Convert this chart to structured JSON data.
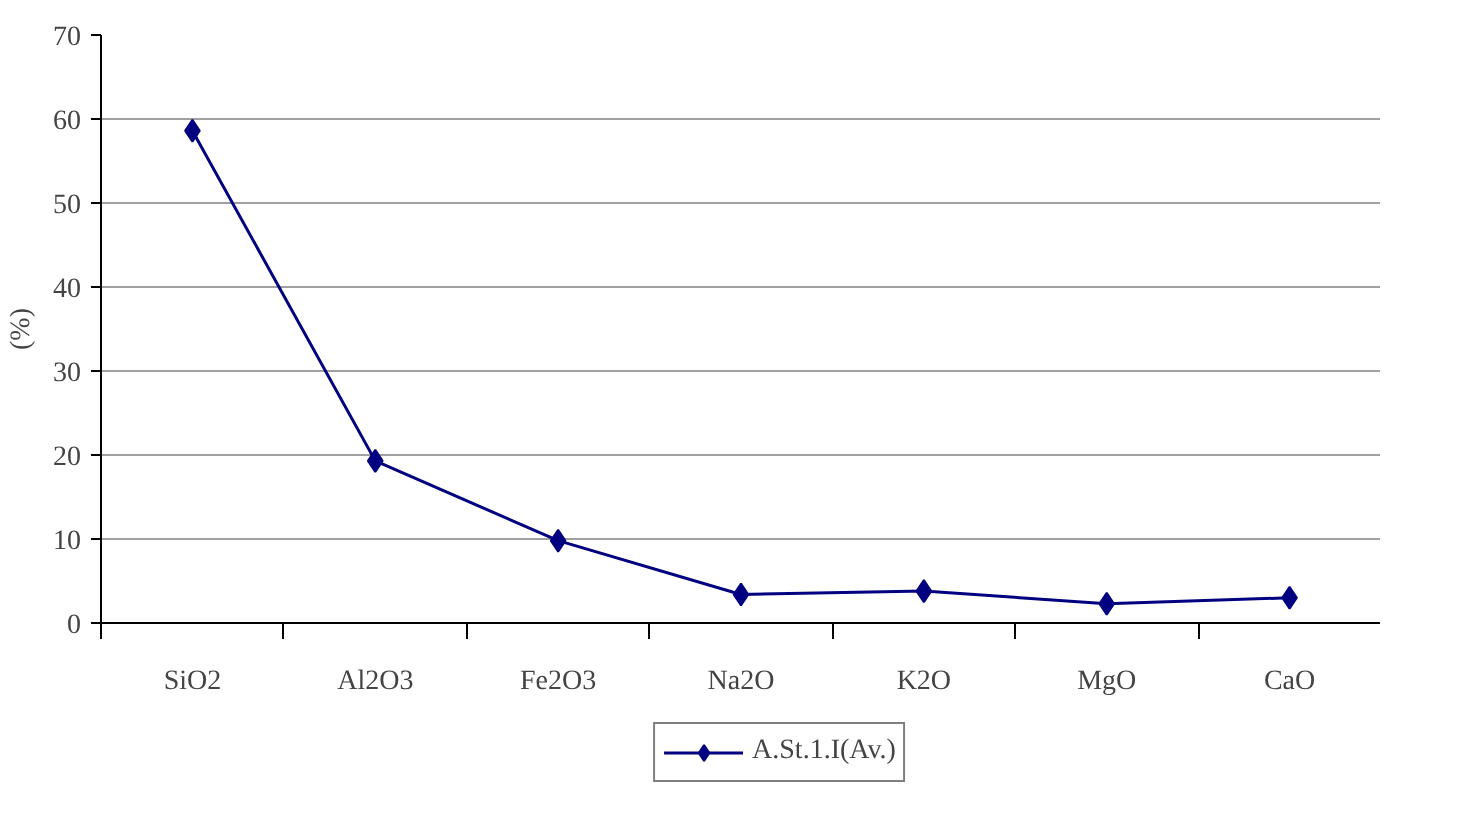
{
  "chart_data": {
    "type": "line",
    "ylabel": "(%)",
    "categories": [
      "SiO2",
      "Al2O3",
      "Fe2O3",
      "Na2O",
      "K2O",
      "MgO",
      "CaO"
    ],
    "series": [
      {
        "name": "A.St.1.I(Av.)",
        "color": "#000080",
        "values": [
          58.6,
          19.3,
          9.8,
          3.4,
          3.8,
          2.3,
          3.0
        ]
      }
    ],
    "ylim": [
      0,
      70
    ],
    "yticks": [
      0,
      10,
      20,
      30,
      40,
      50,
      60,
      70
    ],
    "grid": "y",
    "legend": "bottom",
    "marker": "diamond",
    "line_style": "solid"
  }
}
